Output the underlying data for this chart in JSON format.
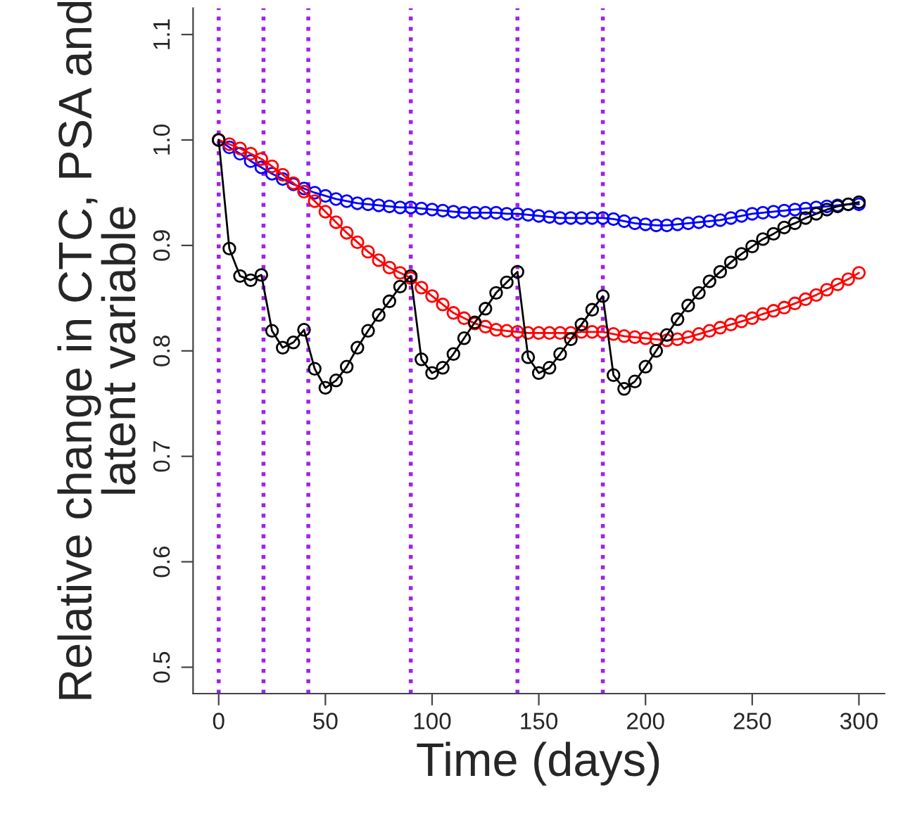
{
  "chart_data": {
    "type": "line",
    "xlabel": "Time (days)",
    "ylabel": "Relative change in CTC, PSA and\nlatent variable",
    "x": [
      0,
      5,
      10,
      15,
      20,
      25,
      30,
      35,
      40,
      45,
      50,
      55,
      60,
      65,
      70,
      75,
      80,
      85,
      90,
      95,
      100,
      105,
      110,
      115,
      120,
      125,
      130,
      135,
      140,
      145,
      150,
      155,
      160,
      165,
      170,
      175,
      180,
      185,
      190,
      195,
      200,
      205,
      210,
      215,
      220,
      225,
      230,
      235,
      240,
      245,
      250,
      255,
      260,
      265,
      270,
      275,
      280,
      285,
      290,
      295,
      300
    ],
    "series": [
      {
        "color": "#0000ff",
        "values": [
          1.0,
          0.993,
          0.987,
          0.98,
          0.974,
          0.968,
          0.963,
          0.958,
          0.954,
          0.95,
          0.947,
          0.944,
          0.942,
          0.94,
          0.939,
          0.938,
          0.937,
          0.936,
          0.936,
          0.935,
          0.934,
          0.933,
          0.932,
          0.931,
          0.931,
          0.931,
          0.931,
          0.93,
          0.93,
          0.929,
          0.928,
          0.927,
          0.926,
          0.926,
          0.926,
          0.926,
          0.926,
          0.925,
          0.923,
          0.921,
          0.92,
          0.919,
          0.919,
          0.92,
          0.921,
          0.922,
          0.923,
          0.924,
          0.926,
          0.928,
          0.93,
          0.931,
          0.932,
          0.933,
          0.934,
          0.935,
          0.936,
          0.937,
          0.938,
          0.939,
          0.939
        ]
      },
      {
        "color": "#ff0000",
        "values": [
          1.0,
          0.996,
          0.992,
          0.987,
          0.982,
          0.975,
          0.967,
          0.959,
          0.951,
          0.942,
          0.932,
          0.922,
          0.912,
          0.903,
          0.894,
          0.886,
          0.879,
          0.874,
          0.869,
          0.86,
          0.852,
          0.844,
          0.836,
          0.831,
          0.826,
          0.823,
          0.82,
          0.819,
          0.818,
          0.817,
          0.817,
          0.817,
          0.817,
          0.817,
          0.818,
          0.818,
          0.818,
          0.816,
          0.814,
          0.813,
          0.812,
          0.811,
          0.81,
          0.811,
          0.813,
          0.816,
          0.819,
          0.822,
          0.825,
          0.828,
          0.831,
          0.835,
          0.838,
          0.841,
          0.845,
          0.849,
          0.853,
          0.858,
          0.863,
          0.868,
          0.874
        ]
      },
      {
        "color": "#000000",
        "values": [
          1.0,
          0.897,
          0.871,
          0.867,
          0.872,
          0.819,
          0.803,
          0.808,
          0.82,
          0.783,
          0.765,
          0.772,
          0.785,
          0.803,
          0.819,
          0.834,
          0.847,
          0.861,
          0.871,
          0.792,
          0.779,
          0.784,
          0.797,
          0.812,
          0.827,
          0.84,
          0.855,
          0.865,
          0.875,
          0.794,
          0.779,
          0.784,
          0.797,
          0.811,
          0.825,
          0.839,
          0.852,
          0.777,
          0.764,
          0.771,
          0.785,
          0.8,
          0.815,
          0.83,
          0.843,
          0.855,
          0.866,
          0.875,
          0.884,
          0.892,
          0.899,
          0.906,
          0.911,
          0.917,
          0.921,
          0.926,
          0.93,
          0.934,
          0.937,
          0.939,
          0.941
        ]
      }
    ],
    "xlim": [
      -12,
      312
    ],
    "xticks": [
      0,
      50,
      100,
      150,
      200,
      250,
      300
    ],
    "ylim": [
      0.475,
      1.125
    ],
    "yticks": [
      {
        "value": 0.5,
        "label": "0.5"
      },
      {
        "value": 0.6,
        "label": "0.6"
      },
      {
        "value": 0.7,
        "label": "0.7"
      },
      {
        "value": 0.8,
        "label": "0.8"
      },
      {
        "value": 0.9,
        "label": "0.9"
      },
      {
        "value": 1.0,
        "label": "1.0"
      },
      {
        "value": 1.1,
        "label": "1.1"
      }
    ],
    "ref_lines": [
      {
        "axis": "x",
        "value": 0,
        "color": "#a020f0",
        "line_style": "dotted"
      },
      {
        "axis": "x",
        "value": 21,
        "color": "#a020f0",
        "line_style": "dotted"
      },
      {
        "axis": "x",
        "value": 42,
        "color": "#a020f0",
        "line_style": "dotted"
      },
      {
        "axis": "x",
        "value": 90,
        "color": "#a020f0",
        "line_style": "dotted"
      },
      {
        "axis": "x",
        "value": 140,
        "color": "#a020f0",
        "line_style": "dotted"
      },
      {
        "axis": "x",
        "value": 180,
        "color": "#a020f0",
        "line_style": "dotted"
      }
    ],
    "marker": "circle",
    "line_style": "solid",
    "grid": false,
    "legend": false
  }
}
